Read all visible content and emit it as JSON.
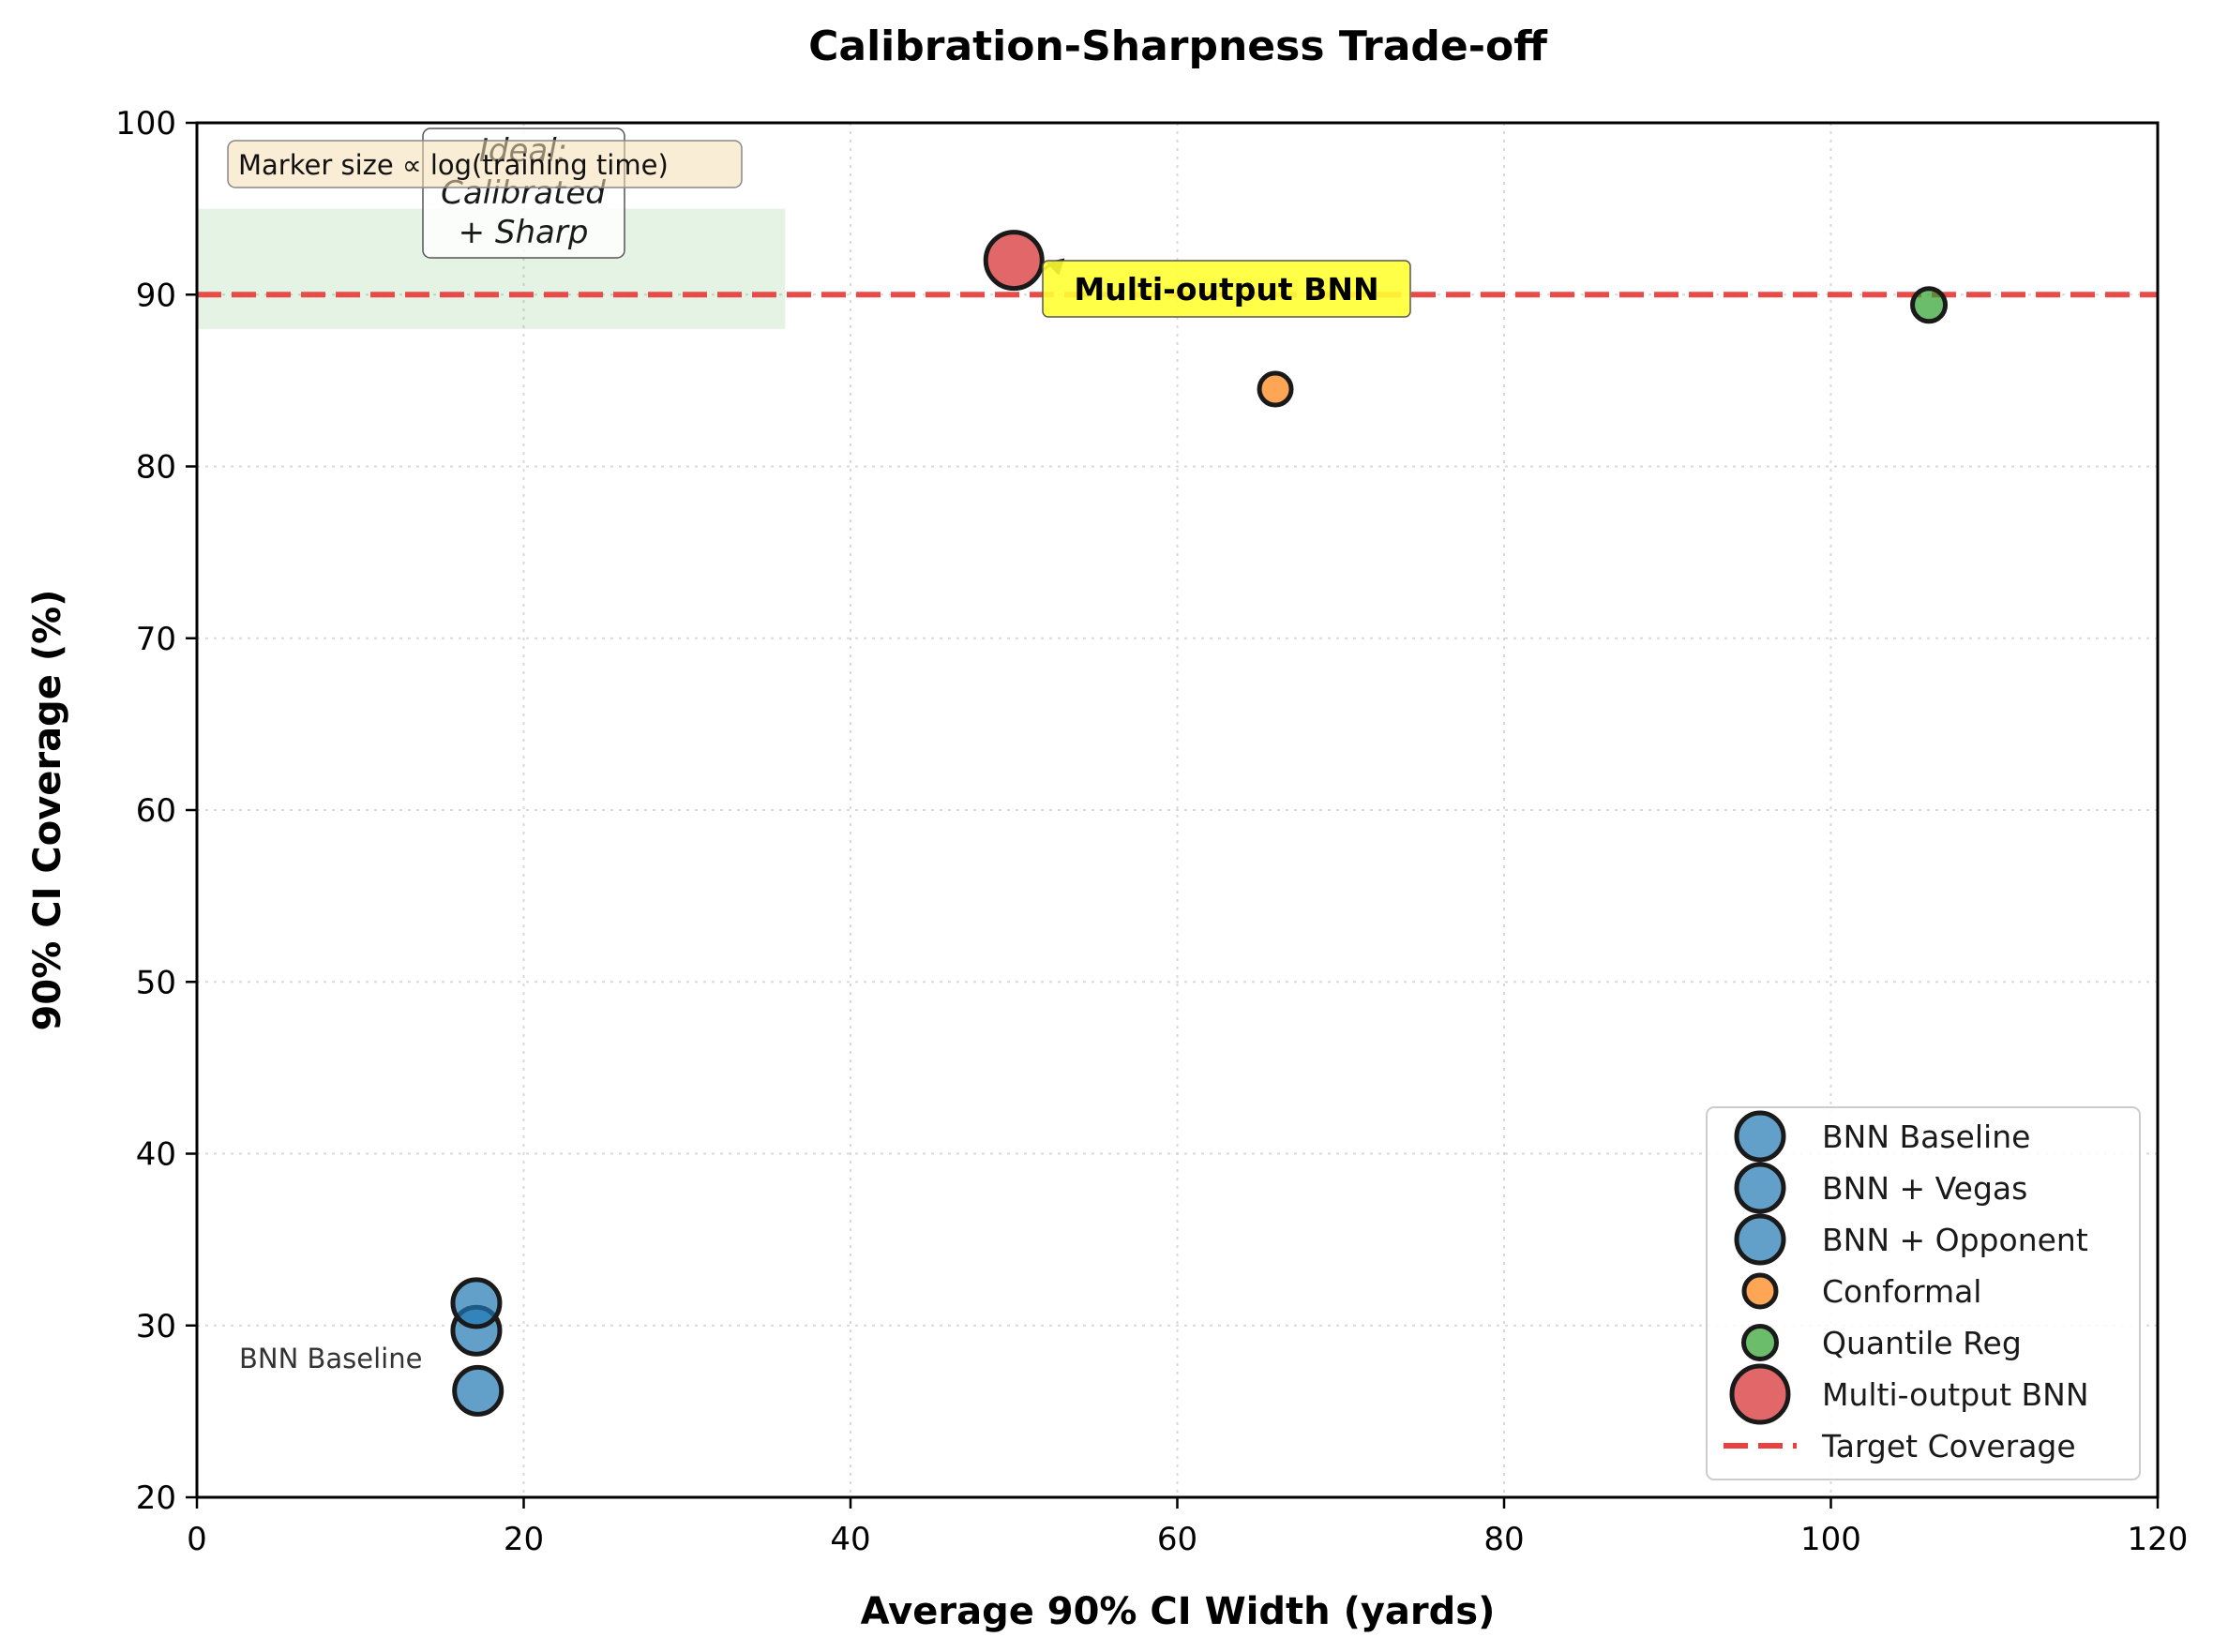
{
  "chart_data": {
    "type": "scatter",
    "title": "Calibration-Sharpness Trade-off",
    "xlabel": "Average 90% CI Width (yards)",
    "ylabel": "90% CI Coverage (%)",
    "xlim": [
      0,
      120
    ],
    "ylim": [
      20,
      100
    ],
    "x_ticks": [
      "0",
      "20",
      "40",
      "60",
      "80",
      "100",
      "120"
    ],
    "y_ticks": [
      "20",
      "30",
      "40",
      "50",
      "60",
      "70",
      "80",
      "90",
      "100"
    ],
    "grid": true,
    "legend_position": "lower-right",
    "series": [
      {
        "name": "BNN Baseline",
        "color": "#1f77b4",
        "x": [
          17.2
        ],
        "y": [
          26.2
        ],
        "marker_scale": 1.0
      },
      {
        "name": "BNN + Vegas",
        "color": "#1f77b4",
        "x": [
          17.1
        ],
        "y": [
          29.7
        ],
        "marker_scale": 1.0
      },
      {
        "name": "BNN + Opponent",
        "color": "#1f77b4",
        "x": [
          17.1
        ],
        "y": [
          31.3
        ],
        "marker_scale": 1.0
      },
      {
        "name": "Conformal",
        "color": "#ff7f0e",
        "x": [
          66.0
        ],
        "y": [
          84.5
        ],
        "marker_scale": 0.68
      },
      {
        "name": "Quantile Reg",
        "color": "#2ca02c",
        "x": [
          106.0
        ],
        "y": [
          89.4
        ],
        "marker_scale": 0.7
      },
      {
        "name": "Multi-output BNN",
        "color": "#d62728",
        "x": [
          50.0
        ],
        "y": [
          92.0
        ],
        "marker_scale": 1.2
      }
    ],
    "reference_line": {
      "name": "Target Coverage",
      "y": 90,
      "color": "#e8413f",
      "style": "dashed"
    },
    "shaded_region": {
      "x": [
        0,
        36
      ],
      "y": [
        88,
        95
      ],
      "color": "#2ca02c"
    },
    "annotations": {
      "marker_note": "Marker size ∝ log(training time)",
      "ideal_line1": "Ideal:",
      "ideal_line2": "Calibrated",
      "ideal_line3": "+ Sharp",
      "callout": "Multi-output BNN",
      "point_label": "BNN Baseline"
    }
  }
}
